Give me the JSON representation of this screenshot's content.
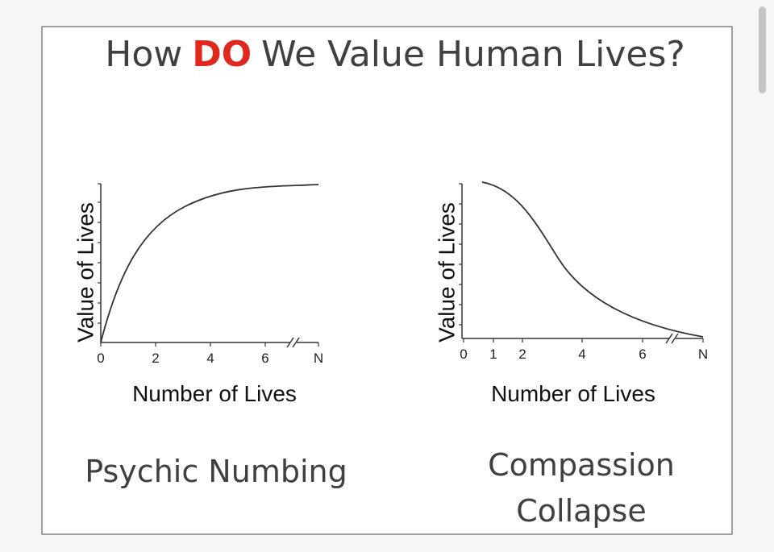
{
  "title": {
    "before": "How",
    "emphasis": "DO",
    "after": "We Value Human Lives?"
  },
  "charts": [
    {
      "y_label": "Value of Lives",
      "x_label": "Number of Lives",
      "x_ticks": [
        "0",
        "2",
        "4",
        "6",
        "N"
      ],
      "caption": [
        "Psychic Numbing"
      ]
    },
    {
      "y_label": "Value of Lives",
      "x_label": "Number of Lives",
      "x_ticks": [
        "0",
        "1",
        "2",
        "4",
        "6",
        "N"
      ],
      "caption": [
        "Compassion",
        "Collapse"
      ]
    }
  ]
}
